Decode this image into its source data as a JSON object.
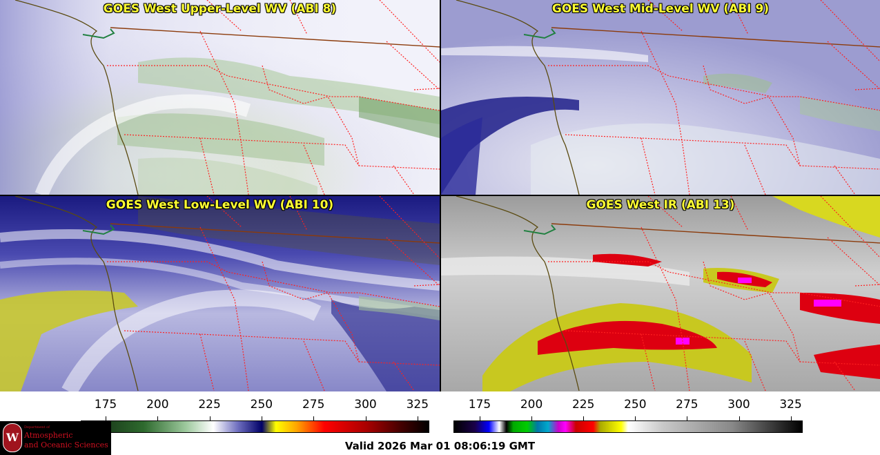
{
  "panels": [
    {
      "title": "GOES West Upper-Level WV (ABI 8)",
      "theme": "upper"
    },
    {
      "title": "GOES West Mid-Level WV (ABI 9)",
      "theme": "mid"
    },
    {
      "title": "GOES West Low-Level WV (ABI 10)",
      "theme": "low"
    },
    {
      "title": "GOES West IR (ABI 13)",
      "theme": "ir"
    }
  ],
  "colorbars": [
    {
      "name": "water-vapor-colorbar",
      "ticks": [
        "175",
        "200",
        "225",
        "250",
        "275",
        "300",
        "325"
      ]
    },
    {
      "name": "infrared-colorbar",
      "ticks": [
        "175",
        "200",
        "225",
        "250",
        "275",
        "300",
        "325"
      ]
    }
  ],
  "logo": {
    "line1": "Department of",
    "line2": "Atmospheric",
    "line3": "and Oceanic Sciences",
    "seal_letter": "W"
  },
  "valid_time": "Valid 2026 Mar 01 08:06:19 GMT",
  "colors": {
    "title_text": "#ffff33",
    "border_states": "#ff2020",
    "border_country": "#8b3a0a",
    "coastline": "#5a4a10"
  }
}
